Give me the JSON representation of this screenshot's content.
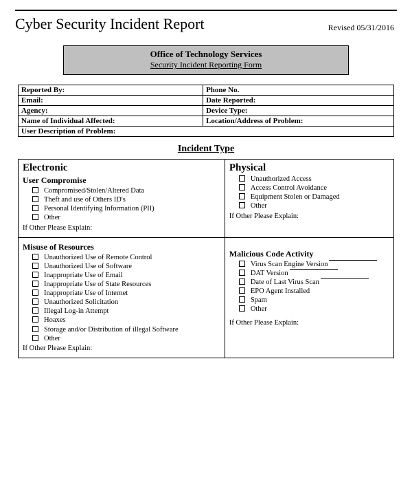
{
  "top": {
    "title": "Cyber Security Incident Report",
    "revised": "Revised 05/31/2016"
  },
  "graybox": {
    "office": "Office of Technology Services",
    "form": "Security Incident Reporting Form"
  },
  "info": {
    "reported_by": "Reported By:",
    "phone": "Phone No.",
    "email": "Email:",
    "date_reported": "Date Reported:",
    "agency": "Agency:",
    "device_type": "Device Type:",
    "individual": "Name of Individual Affected:",
    "location": "Location/Address of Problem:",
    "user_desc": "User Description of Problem:"
  },
  "section_header": "Incident Type",
  "electronic": {
    "title": "Electronic",
    "user_compromise": {
      "sub": "User Compromise",
      "items": [
        "Compromised/Stolen/Altered Data",
        "Theft and use of Others ID's",
        "Personal Identifying Information (PII)",
        "Other"
      ],
      "explain": "If Other Please Explain:"
    },
    "misuse": {
      "sub": "Misuse of Resources",
      "items": [
        "Unauthorized Use of Remote Control",
        "Unauthorized Use of Software",
        "Inappropriate Use of Email",
        "Inappropriate Use of State Resources",
        "Inappropriate Use of Internet",
        "Unauthorized Solicitation",
        "Illegal Log-in Attempt",
        "Hoaxes",
        "Storage and/or Distribution of illegal Software",
        "Other"
      ],
      "explain": "If Other Please Explain:"
    }
  },
  "physical": {
    "title": "Physical",
    "items": [
      "Unauthorized Access",
      "Access Control Avoidance",
      "Equipment Stolen or Damaged",
      "Other"
    ],
    "explain": "If Other Please Explain:"
  },
  "malicious": {
    "sub": "Malicious Code Activity",
    "items": [
      "Virus Scan Engine Version",
      "DAT Version",
      "Date of Last Virus Scan",
      "EPO Agent Installed",
      "Spam",
      "Other"
    ],
    "explain": "If Other Please Explain:"
  }
}
